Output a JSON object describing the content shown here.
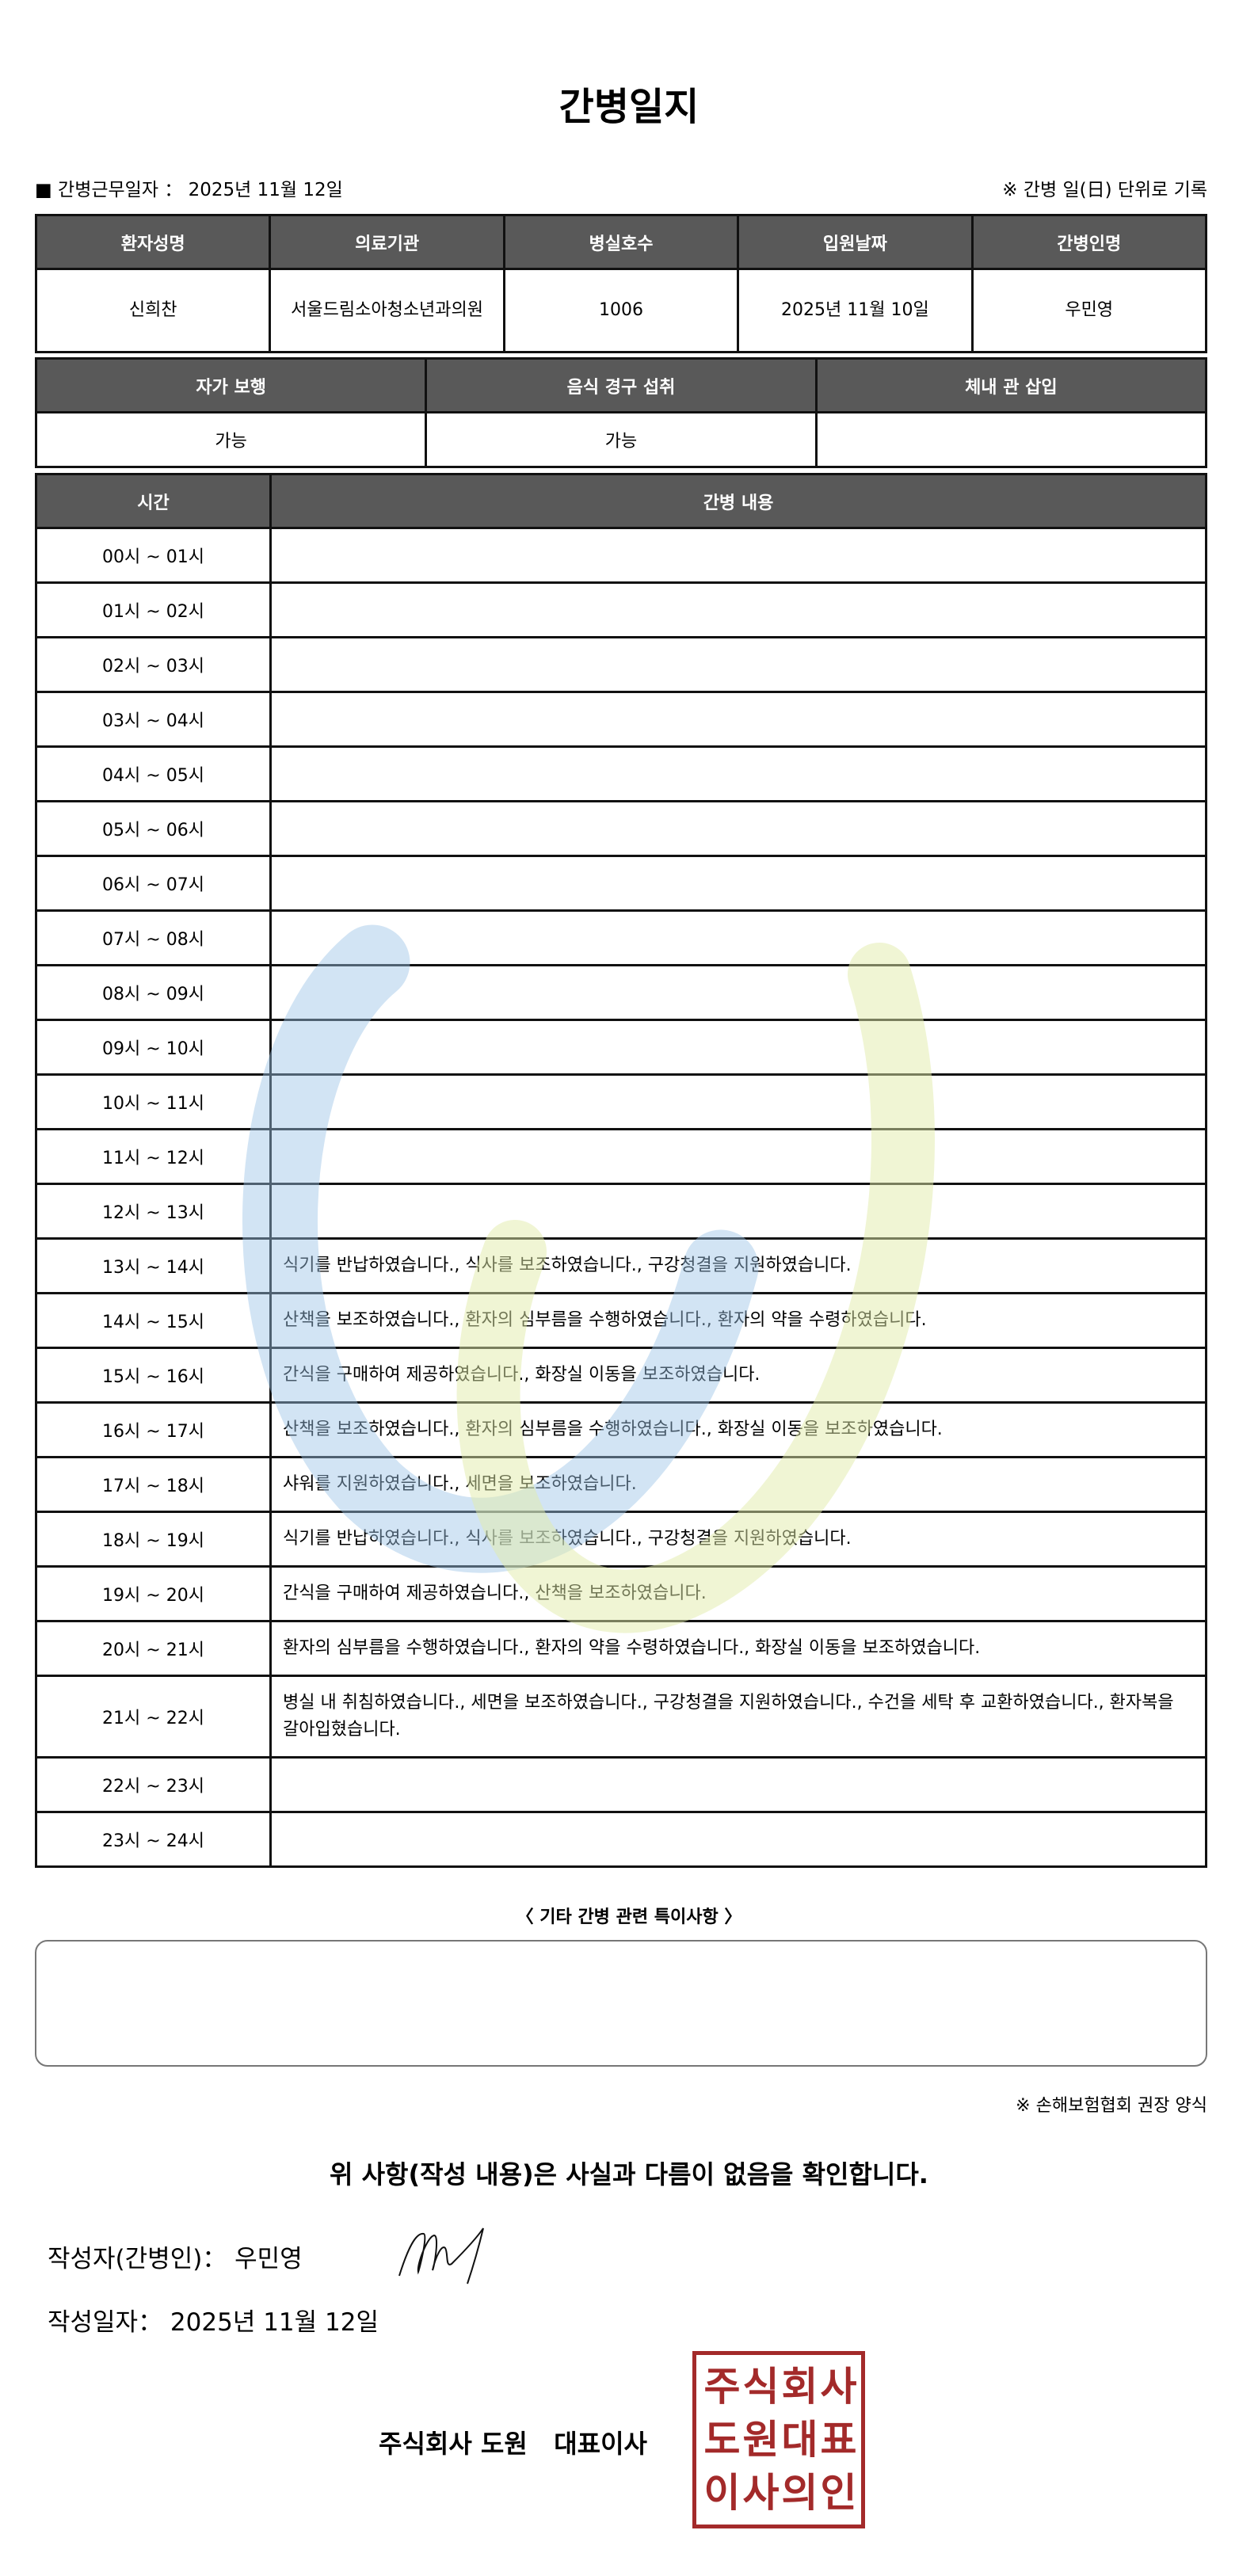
{
  "title": "간병일지",
  "work_date_label": "■ 간병근무일자 ：  2025년 11월 12일",
  "unit_note": "※ 간병 일(日) 단위로 기록",
  "patient_info": {
    "headers": [
      "환자성명",
      "의료기관",
      "병실호수",
      "입원날짜",
      "간병인명"
    ],
    "values": [
      "신희찬",
      "서울드림소아청소년과의원",
      "1006",
      "2025년 11월 10일",
      "우민영"
    ]
  },
  "status_info": {
    "headers": [
      "자가 보행",
      "음식 경구 섭취",
      "체내 관 삽입"
    ],
    "values": [
      "가능",
      "가능",
      ""
    ]
  },
  "log": {
    "headers": [
      "시간",
      "간병 내용"
    ],
    "rows": [
      {
        "time": "00시 ~ 01시",
        "content": ""
      },
      {
        "time": "01시 ~ 02시",
        "content": ""
      },
      {
        "time": "02시 ~ 03시",
        "content": ""
      },
      {
        "time": "03시 ~ 04시",
        "content": ""
      },
      {
        "time": "04시 ~ 05시",
        "content": ""
      },
      {
        "time": "05시 ~ 06시",
        "content": ""
      },
      {
        "time": "06시 ~ 07시",
        "content": ""
      },
      {
        "time": "07시 ~ 08시",
        "content": ""
      },
      {
        "time": "08시 ~ 09시",
        "content": ""
      },
      {
        "time": "09시 ~ 10시",
        "content": ""
      },
      {
        "time": "10시 ~ 11시",
        "content": ""
      },
      {
        "time": "11시 ~ 12시",
        "content": ""
      },
      {
        "time": "12시 ~ 13시",
        "content": ""
      },
      {
        "time": "13시 ~ 14시",
        "content": "식기를 반납하였습니다., 식사를 보조하였습니다., 구강청결을 지원하였습니다."
      },
      {
        "time": "14시 ~ 15시",
        "content": "산책을 보조하였습니다., 환자의 심부름을 수행하였습니다., 환자의 약을 수령하였습니다."
      },
      {
        "time": "15시 ~ 16시",
        "content": "간식을 구매하여 제공하였습니다., 화장실 이동을 보조하였습니다."
      },
      {
        "time": "16시 ~ 17시",
        "content": "산책을 보조하였습니다., 환자의 심부름을 수행하였습니다., 화장실 이동을 보조하였습니다."
      },
      {
        "time": "17시 ~ 18시",
        "content": "샤워를 지원하였습니다., 세면을 보조하였습니다."
      },
      {
        "time": "18시 ~ 19시",
        "content": "식기를 반납하였습니다., 식사를 보조하였습니다., 구강청결을 지원하였습니다."
      },
      {
        "time": "19시 ~ 20시",
        "content": "간식을 구매하여 제공하였습니다., 산책을 보조하였습니다."
      },
      {
        "time": "20시 ~ 21시",
        "content": "환자의 심부름을 수행하였습니다., 환자의 약을 수령하였습니다., 화장실 이동을 보조하였습니다."
      },
      {
        "time": "21시 ~ 22시",
        "content": "병실 내 취침하였습니다., 세면을 보조하였습니다., 구강청결을 지원하였습니다., 수건을 세탁 후 교환하였습니다., 환자복을 갈아입혔습니다."
      },
      {
        "time": "22시 ~ 23시",
        "content": ""
      },
      {
        "time": "23시 ~ 24시",
        "content": ""
      }
    ]
  },
  "memo": {
    "label": "〈 기타 간병 관련 특이사항 〉",
    "value": ""
  },
  "footnote": "※ 손해보험협회 권장 양식",
  "confirm_text": "위 사항(작성 내용)은 사실과 다름이 없음을 확인합니다.",
  "writer_line": "작성자(간병인)：  우민영",
  "date_line": "작성일자：  2025년 11월 12일",
  "company": "주식회사 도원   대표이사",
  "stamp_text": [
    "주",
    "식",
    "회",
    "사",
    "도",
    "원",
    "대",
    "표",
    "이",
    "사",
    "의",
    "인"
  ],
  "colors": {
    "header_bg": "#595959",
    "stamp": "#a32a2a",
    "watermark_blue": "#bcd7ee",
    "watermark_green": "#eef3c8"
  }
}
